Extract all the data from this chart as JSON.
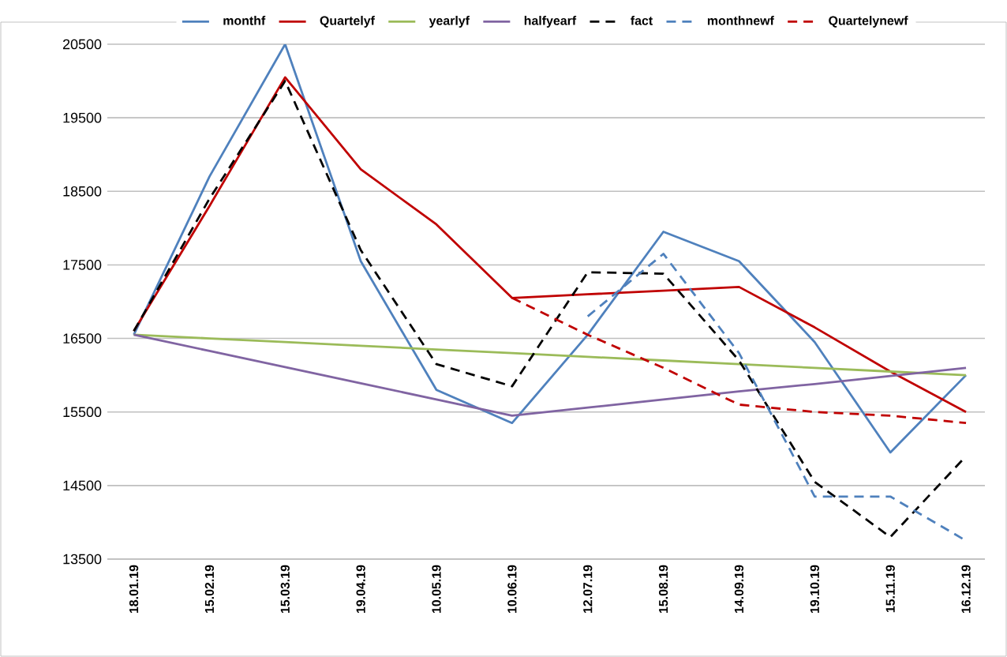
{
  "chart_data": {
    "type": "line",
    "categories": [
      "18.01.19",
      "15.02.19",
      "15.03.19",
      "19.04.19",
      "10.05.19",
      "10.06.19",
      "12.07.19",
      "15.08.19",
      "14.09.19",
      "19.10.19",
      "15.11.19",
      "16.12.19"
    ],
    "series": [
      {
        "name": "monthf",
        "color": "#4f81bd",
        "values": [
          16550,
          18700,
          20500,
          17550,
          15800,
          15350,
          16550,
          17950,
          17550,
          16450,
          14950,
          16000
        ]
      },
      {
        "name": "Quartelyf",
        "color": "#c00000",
        "values": [
          16600,
          18300,
          20050,
          18800,
          18050,
          17050,
          17100,
          17150,
          17200,
          16650,
          16050,
          15500
        ]
      },
      {
        "name": "yearlyf",
        "color": "#9bbb59",
        "values": [
          16550,
          16500,
          16450,
          16400,
          16350,
          16300,
          16250,
          16200,
          16150,
          16100,
          16050,
          16000
        ]
      },
      {
        "name": "halfyearf",
        "color": "#8064a2",
        "values": [
          16550,
          16330,
          16110,
          15890,
          15670,
          15450,
          15560,
          15670,
          15780,
          15880,
          15990,
          16100
        ]
      },
      {
        "name": "fact",
        "color": "#000000",
        "line_style": "dashed",
        "values": [
          16600,
          18400,
          20000,
          17700,
          16150,
          15850,
          17400,
          17380,
          16200,
          14550,
          13800,
          14900
        ]
      },
      {
        "name": "monthnewf",
        "color": "#4f81bd",
        "line_style": "dashed",
        "values": [
          null,
          null,
          null,
          null,
          null,
          null,
          16800,
          17650,
          16300,
          14350,
          14350,
          13750
        ]
      },
      {
        "name": "Quartelynewf",
        "color": "#c00000",
        "line_style": "dashed",
        "values": [
          null,
          null,
          null,
          null,
          null,
          17050,
          16550,
          16100,
          15600,
          15500,
          15450,
          15350
        ]
      }
    ],
    "ylim": [
      13500,
      20500
    ],
    "yticks": [
      13500,
      14500,
      15500,
      16500,
      17500,
      18500,
      19500,
      20500
    ],
    "grid": "y",
    "legend": "top",
    "marker": "none"
  }
}
